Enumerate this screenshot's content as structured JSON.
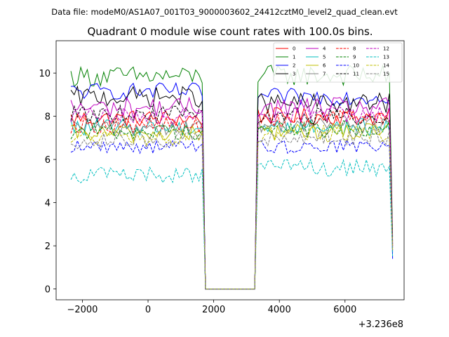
{
  "chart_data": {
    "type": "line",
    "suptitle": "Data file: modeM0/AS1A07_001T03_9000003602_24412cztM0_level2_quad_clean.evt",
    "title": "Quadrant 0 module wise count rates with 100.0s bins.",
    "xlabel": "",
    "ylabel": "",
    "x_offset_label": "+3.236e8",
    "xlim": [
      -2800,
      7800
    ],
    "ylim": [
      -0.5,
      11.5
    ],
    "x_ticks": [
      -2000,
      0,
      2000,
      4000,
      6000
    ],
    "x_tick_labels": [
      "−2000",
      "0",
      "2000",
      "4000",
      "6000"
    ],
    "y_ticks": [
      0,
      2,
      4,
      6,
      8,
      10
    ],
    "y_tick_labels": [
      "0",
      "2",
      "4",
      "6",
      "8",
      "10"
    ],
    "legend_location": "upper-right",
    "segments": {
      "seg1_x_start": -2350,
      "seg1_x_end": 1650,
      "gap_x_start": 1750,
      "gap_x_end": 3250,
      "seg2_x_start": 3350,
      "seg2_x_end": 7350,
      "final_x": 7450,
      "step": 100
    },
    "series": [
      {
        "name": "0",
        "color": "#ff0000",
        "dash": "solid",
        "mean1": 7.9,
        "mean2": 8.0,
        "amp": 0.25,
        "final": 2.0
      },
      {
        "name": "1",
        "color": "#008000",
        "dash": "solid",
        "mean1": 9.85,
        "mean2": 9.9,
        "amp": 0.3,
        "final": 2.4
      },
      {
        "name": "2",
        "color": "#0000ff",
        "dash": "solid",
        "mean1": 9.15,
        "mean2": 8.9,
        "amp": 0.25,
        "final": 1.4
      },
      {
        "name": "3",
        "color": "#000000",
        "dash": "solid",
        "mean1": 8.9,
        "mean2": 8.6,
        "amp": 0.3,
        "final": 2.2
      },
      {
        "name": "4",
        "color": "#bf00bf",
        "dash": "solid",
        "mean1": 8.4,
        "mean2": 8.4,
        "amp": 0.3,
        "final": 2.1
      },
      {
        "name": "5",
        "color": "#00bfbf",
        "dash": "solid",
        "mean1": 7.5,
        "mean2": 7.5,
        "amp": 0.25,
        "final": 1.9
      },
      {
        "name": "6",
        "color": "#bfbf00",
        "dash": "solid",
        "mean1": 7.2,
        "mean2": 7.3,
        "amp": 0.25,
        "final": 1.8
      },
      {
        "name": "7",
        "color": "#808080",
        "dash": "solid",
        "mean1": 7.5,
        "mean2": 7.6,
        "amp": 0.25,
        "final": 1.9
      },
      {
        "name": "8",
        "color": "#ff0000",
        "dash": "dashed",
        "mean1": 7.6,
        "mean2": 7.9,
        "amp": 0.25,
        "final": 2.0
      },
      {
        "name": "9",
        "color": "#008000",
        "dash": "dashed",
        "mean1": 7.3,
        "mean2": 7.4,
        "amp": 0.25,
        "final": 1.9
      },
      {
        "name": "10",
        "color": "#0000ff",
        "dash": "dashed",
        "mean1": 6.6,
        "mean2": 6.6,
        "amp": 0.2,
        "final": 1.7
      },
      {
        "name": "11",
        "color": "#000000",
        "dash": "dashed",
        "mean1": 8.1,
        "mean2": 8.0,
        "amp": 0.25,
        "final": 2.1
      },
      {
        "name": "12",
        "color": "#bf00bf",
        "dash": "dashed",
        "mean1": 8.0,
        "mean2": 8.1,
        "amp": 0.25,
        "final": 2.0
      },
      {
        "name": "13",
        "color": "#00bfbf",
        "dash": "dashed",
        "mean1": 5.3,
        "mean2": 5.6,
        "amp": 0.25,
        "final": 1.5
      },
      {
        "name": "14",
        "color": "#bfbf00",
        "dash": "dashed",
        "mean1": 7.0,
        "mean2": 7.2,
        "amp": 0.25,
        "final": 1.8
      },
      {
        "name": "15",
        "color": "#808080",
        "dash": "dashed",
        "mean1": 6.9,
        "mean2": 7.0,
        "amp": 0.25,
        "final": 1.8
      }
    ]
  }
}
